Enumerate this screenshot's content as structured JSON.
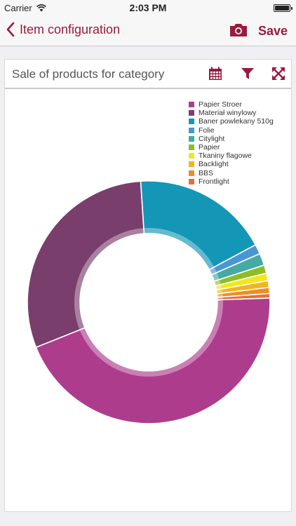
{
  "status": {
    "carrier": "Carrier",
    "time": "2:03 PM"
  },
  "nav": {
    "back_label": "Item configuration",
    "save_label": "Save"
  },
  "card": {
    "title": "Sale of products for category"
  },
  "chart_data": {
    "type": "pie",
    "title": "",
    "legend_position": "top-right",
    "categories": [
      "Papier Stroer",
      "Materiał winylowy",
      "Baner powlekany 510g",
      "Folie",
      "Citylight",
      "Papier",
      "Tkaniny flagowe",
      "Backlight",
      "BBS",
      "Frontlight"
    ],
    "values": [
      44.5,
      30.0,
      18.2,
      1.3,
      1.6,
      1.1,
      1.0,
      0.9,
      0.8,
      0.6
    ],
    "colors": [
      "#ad3d8c",
      "#7a3e6c",
      "#1496b6",
      "#4a96d4",
      "#45aaa4",
      "#8ebd26",
      "#f4e61c",
      "#f2b61c",
      "#ee8d28",
      "#e2703a"
    ]
  }
}
